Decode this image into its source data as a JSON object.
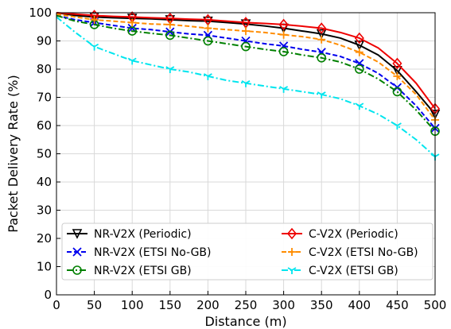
{
  "chart_data": {
    "type": "line",
    "xlabel": "Distance (m)",
    "ylabel": "Packet Delivery Rate (%)",
    "xlim": [
      0,
      500
    ],
    "ylim": [
      0,
      100
    ],
    "xticks": [
      0,
      50,
      100,
      150,
      200,
      250,
      300,
      350,
      400,
      450,
      500
    ],
    "yticks": [
      0,
      10,
      20,
      30,
      40,
      50,
      60,
      70,
      80,
      90,
      100
    ],
    "grid": true,
    "legend_position": "lower-center, two columns",
    "series": [
      {
        "name": "NR-V2X (Periodic)",
        "color": "#000000",
        "line_style": "solid",
        "marker": "triangle-down",
        "x": [
          0,
          25,
          50,
          75,
          100,
          125,
          150,
          175,
          200,
          225,
          250,
          275,
          300,
          325,
          350,
          375,
          400,
          425,
          450,
          475,
          500
        ],
        "y": [
          100,
          99,
          98.5,
          98.2,
          98,
          97.8,
          97.5,
          97.2,
          97,
          96.5,
          96,
          95.3,
          94.5,
          93.5,
          92.5,
          91,
          88.5,
          85,
          79.5,
          72,
          64
        ]
      },
      {
        "name": "NR-V2X (ETSI No-GB)",
        "color": "#0000ee",
        "line_style": "dashed",
        "marker": "x",
        "x": [
          0,
          25,
          50,
          75,
          100,
          125,
          150,
          175,
          200,
          225,
          250,
          275,
          300,
          325,
          350,
          375,
          400,
          425,
          450,
          475,
          500
        ],
        "y": [
          99,
          97.5,
          96.5,
          95.5,
          94.5,
          94,
          93.2,
          92.5,
          92,
          91,
          90,
          89,
          88.2,
          87,
          86,
          84.5,
          82,
          78.5,
          73.5,
          67,
          59
        ]
      },
      {
        "name": "NR-V2X (ETSI GB)",
        "color": "#008000",
        "line_style": "dash-dot",
        "marker": "circle",
        "x": [
          0,
          25,
          50,
          75,
          100,
          125,
          150,
          175,
          200,
          225,
          250,
          275,
          300,
          325,
          350,
          375,
          400,
          425,
          450,
          475,
          500
        ],
        "y": [
          99,
          97,
          95.8,
          94.5,
          93.5,
          92.7,
          92,
          91,
          90,
          89,
          88,
          87,
          86.2,
          85,
          84,
          82.5,
          80,
          76.5,
          72,
          65.5,
          58
        ]
      },
      {
        "name": "C-V2X (Periodic)",
        "color": "#ee0000",
        "line_style": "solid",
        "marker": "diamond",
        "x": [
          0,
          25,
          50,
          75,
          100,
          125,
          150,
          175,
          200,
          225,
          250,
          275,
          300,
          325,
          350,
          375,
          400,
          425,
          450,
          475,
          500
        ],
        "y": [
          100,
          99.5,
          99,
          98.7,
          98.5,
          98.2,
          98,
          97.7,
          97.5,
          97,
          96.5,
          96.2,
          95.8,
          95.2,
          94.5,
          93,
          91,
          87.5,
          82,
          75,
          66
        ]
      },
      {
        "name": "C-V2X (ETSI No-GB)",
        "color": "#ff8c00",
        "line_style": "dashed",
        "marker": "plus",
        "x": [
          0,
          25,
          50,
          75,
          100,
          125,
          150,
          175,
          200,
          225,
          250,
          275,
          300,
          325,
          350,
          375,
          400,
          425,
          450,
          475,
          500
        ],
        "y": [
          99.5,
          98.5,
          97.5,
          97,
          96.5,
          96,
          95.8,
          95.2,
          94.5,
          94,
          93.5,
          93,
          92.2,
          91.5,
          90.5,
          88.5,
          86,
          82.5,
          77.5,
          71,
          62
        ]
      },
      {
        "name": "C-V2X (ETSI GB)",
        "color": "#00e5ee",
        "line_style": "dash-dot",
        "marker": "tri-down",
        "x": [
          0,
          25,
          50,
          75,
          100,
          125,
          150,
          175,
          200,
          225,
          250,
          275,
          300,
          325,
          350,
          375,
          400,
          425,
          450,
          475,
          500
        ],
        "y": [
          98.5,
          93,
          88,
          85.5,
          83,
          81.5,
          80,
          79,
          77.5,
          76,
          75,
          74,
          73,
          72,
          71,
          69.5,
          67,
          64,
          60,
          55,
          49
        ]
      }
    ]
  }
}
